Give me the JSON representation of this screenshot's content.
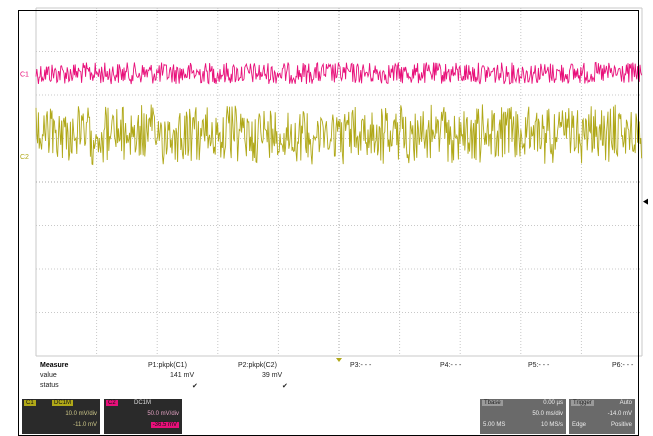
{
  "colors": {
    "background": "#ffffff",
    "grid": "#c8c8c8",
    "grid_center": "#a8a8a8",
    "ch1": "#e8107a",
    "ch2": "#b0a818",
    "panel_dark": "#2a2a2a",
    "panel_mid": "#5a5a5a",
    "panel_light": "#8a8a8a"
  },
  "chart_data": {
    "type": "line",
    "grid": true,
    "series": [
      {
        "name": "C1",
        "color": "#e8107a",
        "center_div": 1.5,
        "amplitude_div": 0.25
      },
      {
        "name": "C2",
        "color": "#b0a818",
        "center_div": 2.9,
        "amplitude_div": 0.75
      }
    ]
  },
  "markers": {
    "c1": "C1",
    "c2": "C2"
  },
  "measure": {
    "header": "Measure",
    "row_value": "value",
    "row_status": "status",
    "columns": [
      {
        "name": "P1:pkpk(C1)",
        "value": "141 mV",
        "status": "✔"
      },
      {
        "name": "P2:pkpk(C2)",
        "value": "39 mV",
        "status": "✔"
      },
      {
        "name": "P3:- - -",
        "value": "",
        "status": ""
      },
      {
        "name": "P4:- - -",
        "value": "",
        "status": ""
      },
      {
        "name": "P5:- - -",
        "value": "",
        "status": ""
      },
      {
        "name": "P6:- - -",
        "value": "",
        "status": ""
      }
    ]
  },
  "channel_boxes": [
    {
      "id": "C1",
      "lines": [
        "C1",
        "DC1M",
        "10.0 mV/div",
        "-11.0 mV"
      ]
    },
    {
      "id": "C2",
      "lines": [
        "C2",
        "DC1M",
        "50.0 mV/div",
        "-36.5 mV"
      ]
    }
  ],
  "timebase": {
    "title": "Tbase",
    "value": "0.00 µs",
    "line2": "50.0 ms/div",
    "line3_left": "5.00 MS",
    "line3_right": "10 MS/s"
  },
  "trigger": {
    "title": "Trigger",
    "mode": "Auto",
    "level": "-14.0 mV",
    "slope": "Edge",
    "coupling": "Positive"
  }
}
